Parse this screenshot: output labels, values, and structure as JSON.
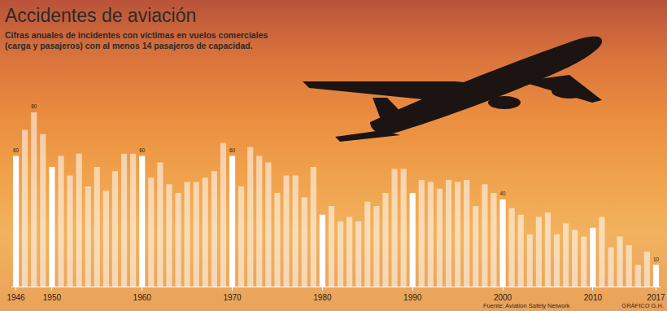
{
  "chart_data": {
    "type": "bar",
    "title": "Accidentes de aviación",
    "subtitle": "Cifras anuales de incidentes con víctimas en vuelos comerciales (carga y pasajeros) con al menos 14 pasajeros de capacidad.",
    "source": "Fuente: Aviation Safety Network",
    "credit": "GRÁFICO G.H.",
    "x": [
      1946,
      1947,
      1948,
      1949,
      1950,
      1951,
      1952,
      1953,
      1954,
      1955,
      1956,
      1957,
      1958,
      1959,
      1960,
      1961,
      1962,
      1963,
      1964,
      1965,
      1966,
      1967,
      1968,
      1969,
      1970,
      1971,
      1972,
      1973,
      1974,
      1975,
      1976,
      1977,
      1978,
      1979,
      1980,
      1981,
      1982,
      1983,
      1984,
      1985,
      1986,
      1987,
      1988,
      1989,
      1990,
      1991,
      1992,
      1993,
      1994,
      1995,
      1996,
      1997,
      1998,
      1999,
      2000,
      2001,
      2002,
      2003,
      2004,
      2005,
      2006,
      2007,
      2008,
      2009,
      2010,
      2011,
      2012,
      2013,
      2014,
      2015,
      2016,
      2017
    ],
    "values": [
      60,
      72,
      80,
      70,
      55,
      60,
      51,
      61,
      46,
      55,
      44,
      53,
      61,
      61,
      60,
      50,
      57,
      47,
      43,
      48,
      48,
      50,
      53,
      66,
      60,
      46,
      64,
      60,
      57,
      43,
      51,
      51,
      41,
      55,
      33,
      37,
      30,
      32,
      30,
      39,
      37,
      43,
      54,
      54,
      43,
      49,
      48,
      45,
      49,
      48,
      49,
      37,
      47,
      43,
      40,
      36,
      33,
      24,
      32,
      34,
      24,
      29,
      26,
      23,
      27,
      32,
      18,
      23,
      19,
      10,
      16,
      10
    ],
    "value_labels": [
      "60",
      null,
      "80",
      null,
      null,
      null,
      null,
      null,
      null,
      null,
      null,
      null,
      null,
      null,
      "60",
      null,
      null,
      null,
      null,
      null,
      null,
      null,
      null,
      null,
      "60",
      null,
      null,
      null,
      null,
      null,
      null,
      null,
      null,
      null,
      null,
      null,
      null,
      null,
      null,
      null,
      null,
      null,
      null,
      null,
      null,
      null,
      null,
      null,
      null,
      null,
      null,
      null,
      null,
      null,
      "40",
      null,
      null,
      null,
      null,
      null,
      null,
      null,
      null,
      null,
      null,
      null,
      null,
      null,
      null,
      null,
      null,
      "10"
    ],
    "colors": [
      "#ffffff",
      "rgba(255,255,255,0.55)",
      "rgba(255,255,255,0.55)",
      "rgba(255,255,255,0.55)",
      "#ffffff",
      "rgba(255,255,255,0.55)",
      "rgba(255,255,255,0.55)",
      "rgba(255,255,255,0.55)",
      "rgba(255,255,255,0.55)",
      "rgba(255,255,255,0.55)",
      "rgba(255,255,255,0.55)",
      "rgba(255,255,255,0.55)",
      "rgba(255,255,255,0.55)",
      "rgba(255,255,255,0.55)",
      "#ffffff",
      "rgba(255,255,255,0.55)",
      "rgba(255,255,255,0.55)",
      "rgba(255,255,255,0.55)",
      "rgba(255,255,255,0.55)",
      "rgba(255,255,255,0.55)",
      "rgba(255,255,255,0.55)",
      "rgba(255,255,255,0.55)",
      "rgba(255,255,255,0.55)",
      "rgba(255,255,255,0.55)",
      "#ffffff",
      "rgba(255,255,255,0.55)",
      "rgba(255,255,255,0.55)",
      "rgba(255,255,255,0.55)",
      "rgba(255,255,255,0.55)",
      "rgba(255,255,255,0.55)",
      "rgba(255,255,255,0.55)",
      "rgba(255,255,255,0.55)",
      "rgba(255,255,255,0.55)",
      "rgba(255,255,255,0.55)",
      "#ffffff",
      "rgba(255,255,255,0.55)",
      "rgba(255,255,255,0.55)",
      "rgba(255,255,255,0.55)",
      "rgba(255,255,255,0.55)",
      "rgba(255,255,255,0.55)",
      "rgba(255,255,255,0.55)",
      "rgba(255,255,255,0.55)",
      "rgba(255,255,255,0.55)",
      "rgba(255,255,255,0.55)",
      "#ffffff",
      "rgba(255,255,255,0.55)",
      "rgba(255,255,255,0.55)",
      "rgba(255,255,255,0.55)",
      "rgba(255,255,255,0.55)",
      "rgba(255,255,255,0.55)",
      "rgba(255,255,255,0.55)",
      "rgba(255,255,255,0.55)",
      "rgba(255,255,255,0.55)",
      "rgba(255,255,255,0.55)",
      "#ffffff",
      "rgba(255,255,255,0.55)",
      "rgba(255,255,255,0.55)",
      "rgba(255,255,255,0.55)",
      "rgba(255,255,255,0.55)",
      "rgba(255,255,255,0.55)",
      "rgba(255,255,255,0.55)",
      "rgba(255,255,255,0.55)",
      "rgba(255,255,255,0.55)",
      "rgba(255,255,255,0.55)",
      "#ffffff",
      "rgba(255,255,255,0.55)",
      "rgba(255,255,255,0.55)",
      "rgba(255,255,255,0.55)",
      "rgba(255,255,255,0.55)",
      "rgba(255,255,255,0.55)",
      "rgba(255,255,255,0.55)",
      "#ffffff"
    ],
    "xlim": [
      1945.5,
      2017.5
    ],
    "xticks": [
      1946,
      1950,
      1960,
      1970,
      1980,
      1990,
      2000,
      2010,
      2017
    ],
    "ylim": [
      0,
      80
    ],
    "yticks": [],
    "grid": false,
    "tick_labels": "x"
  }
}
